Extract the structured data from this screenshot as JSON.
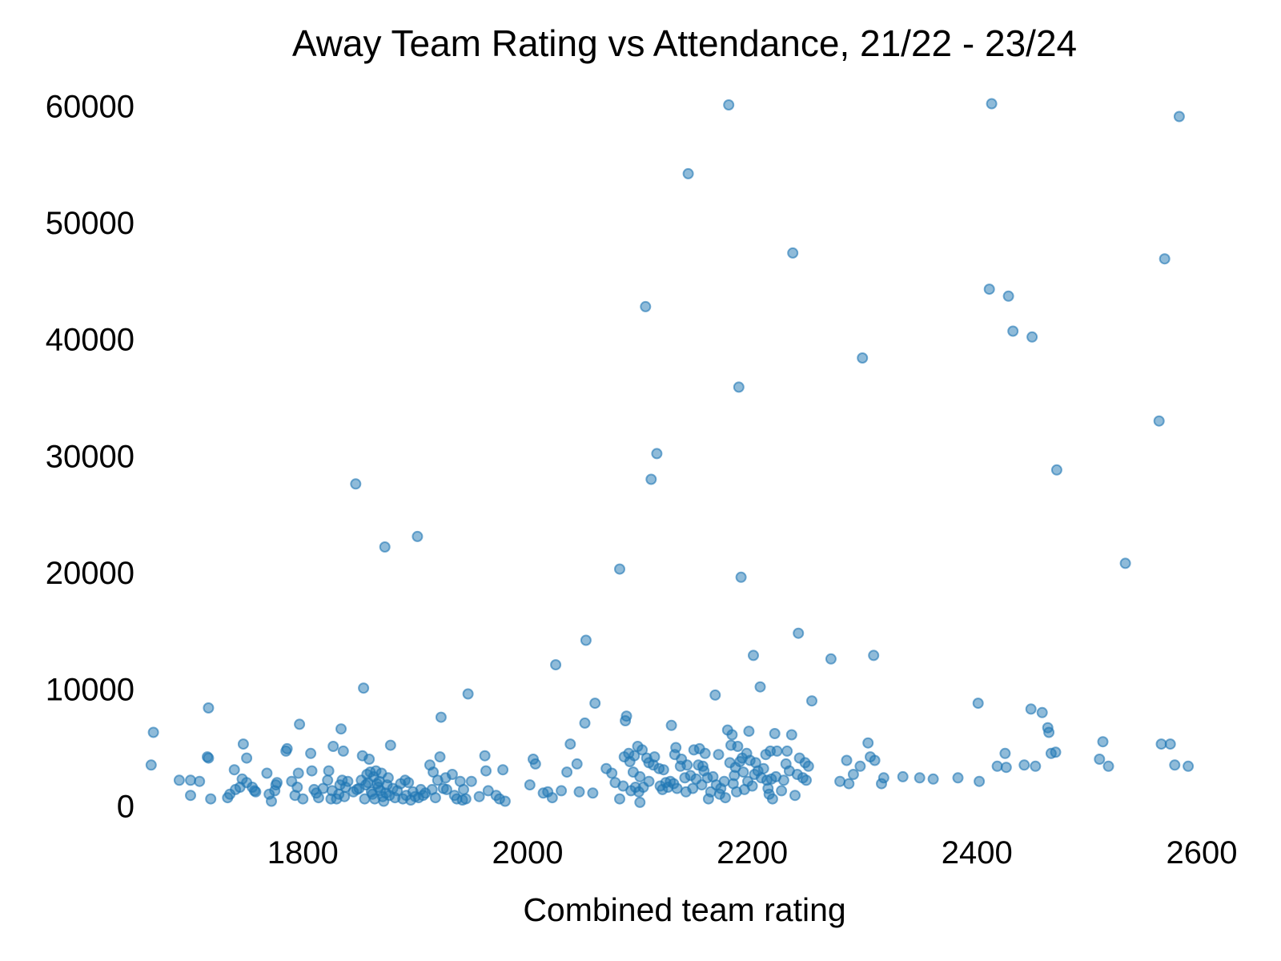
{
  "chart_data": {
    "type": "scatter",
    "title": "Away Team Rating vs Attendance, 21/22 - 23/24",
    "xlabel": "Combined team rating",
    "ylabel": "",
    "xlim": [
      1653,
      2605
    ],
    "ylim": [
      -3000,
      62500
    ],
    "x_ticks": [
      1800,
      2000,
      2200,
      2400,
      2600
    ],
    "y_ticks": [
      0,
      10000,
      20000,
      30000,
      40000,
      50000,
      60000
    ],
    "grid": false,
    "legend": "none",
    "point_color": "#1f77b4",
    "point_alpha": 0.5,
    "points": [
      [
        1665,
        3500
      ],
      [
        1667,
        6300
      ],
      [
        1690,
        2200
      ],
      [
        1700,
        900
      ],
      [
        1700,
        2200
      ],
      [
        1708,
        2100
      ],
      [
        1715,
        4200
      ],
      [
        1716,
        8400
      ],
      [
        1716,
        4100
      ],
      [
        1718,
        600
      ],
      [
        1733,
        700
      ],
      [
        1735,
        1000
      ],
      [
        1739,
        3100
      ],
      [
        1740,
        1400
      ],
      [
        1744,
        1600
      ],
      [
        1746,
        2300
      ],
      [
        1747,
        5300
      ],
      [
        1750,
        4100
      ],
      [
        1750,
        2000
      ],
      [
        1755,
        1600
      ],
      [
        1757,
        1300
      ],
      [
        1758,
        1200
      ],
      [
        1768,
        2800
      ],
      [
        1770,
        1000
      ],
      [
        1772,
        400
      ],
      [
        1775,
        1300
      ],
      [
        1776,
        1800
      ],
      [
        1777,
        2000
      ],
      [
        1785,
        4700
      ],
      [
        1786,
        4900
      ],
      [
        1790,
        2100
      ],
      [
        1793,
        900
      ],
      [
        1795,
        1600
      ],
      [
        1796,
        2800
      ],
      [
        1797,
        7000
      ],
      [
        1800,
        600
      ],
      [
        1807,
        4500
      ],
      [
        1808,
        3000
      ],
      [
        1810,
        1400
      ],
      [
        1812,
        1100
      ],
      [
        1814,
        700
      ],
      [
        1818,
        1500
      ],
      [
        1822,
        2200
      ],
      [
        1823,
        3000
      ],
      [
        1825,
        600
      ],
      [
        1826,
        1300
      ],
      [
        1827,
        5100
      ],
      [
        1830,
        600
      ],
      [
        1832,
        1000
      ],
      [
        1833,
        1800
      ],
      [
        1834,
        6600
      ],
      [
        1835,
        2200
      ],
      [
        1836,
        4700
      ],
      [
        1837,
        800
      ],
      [
        1838,
        1600
      ],
      [
        1840,
        2100
      ],
      [
        1845,
        1200
      ],
      [
        1847,
        27600
      ],
      [
        1848,
        1400
      ],
      [
        1850,
        1500
      ],
      [
        1852,
        2200
      ],
      [
        1853,
        4300
      ],
      [
        1854,
        10100
      ],
      [
        1855,
        600
      ],
      [
        1856,
        1800
      ],
      [
        1857,
        2700
      ],
      [
        1858,
        2000
      ],
      [
        1859,
        4000
      ],
      [
        1860,
        2900
      ],
      [
        1861,
        1200
      ],
      [
        1862,
        1000
      ],
      [
        1863,
        2500
      ],
      [
        1864,
        600
      ],
      [
        1865,
        3000
      ],
      [
        1866,
        1900
      ],
      [
        1867,
        1600
      ],
      [
        1868,
        2100
      ],
      [
        1869,
        1300
      ],
      [
        1870,
        2800
      ],
      [
        1871,
        800
      ],
      [
        1872,
        400
      ],
      [
        1873,
        22200
      ],
      [
        1874,
        1100
      ],
      [
        1875,
        1800
      ],
      [
        1876,
        2400
      ],
      [
        1877,
        900
      ],
      [
        1878,
        5200
      ],
      [
        1880,
        1500
      ],
      [
        1882,
        700
      ],
      [
        1884,
        1300
      ],
      [
        1887,
        1900
      ],
      [
        1889,
        600
      ],
      [
        1891,
        2200
      ],
      [
        1892,
        900
      ],
      [
        1894,
        2000
      ],
      [
        1896,
        500
      ],
      [
        1898,
        1200
      ],
      [
        1900,
        800
      ],
      [
        1902,
        23100
      ],
      [
        1903,
        700
      ],
      [
        1905,
        1400
      ],
      [
        1907,
        900
      ],
      [
        1909,
        1100
      ],
      [
        1913,
        3500
      ],
      [
        1915,
        1400
      ],
      [
        1916,
        2900
      ],
      [
        1918,
        700
      ],
      [
        1920,
        2200
      ],
      [
        1922,
        4200
      ],
      [
        1923,
        7600
      ],
      [
        1925,
        1500
      ],
      [
        1927,
        2400
      ],
      [
        1928,
        1400
      ],
      [
        1933,
        2700
      ],
      [
        1935,
        900
      ],
      [
        1937,
        600
      ],
      [
        1940,
        2100
      ],
      [
        1942,
        500
      ],
      [
        1943,
        1400
      ],
      [
        1945,
        600
      ],
      [
        1947,
        9600
      ],
      [
        1950,
        2100
      ],
      [
        1957,
        800
      ],
      [
        1962,
        4300
      ],
      [
        1963,
        3000
      ],
      [
        1965,
        1300
      ],
      [
        1972,
        900
      ],
      [
        1975,
        600
      ],
      [
        1978,
        3100
      ],
      [
        1980,
        400
      ],
      [
        2002,
        1800
      ],
      [
        2005,
        4000
      ],
      [
        2007,
        3600
      ],
      [
        2014,
        1100
      ],
      [
        2018,
        1200
      ],
      [
        2022,
        700
      ],
      [
        2025,
        12100
      ],
      [
        2030,
        1300
      ],
      [
        2035,
        2900
      ],
      [
        2038,
        5300
      ],
      [
        2044,
        3600
      ],
      [
        2046,
        1200
      ],
      [
        2051,
        7100
      ],
      [
        2052,
        14200
      ],
      [
        2058,
        1100
      ],
      [
        2060,
        8800
      ],
      [
        2070,
        3200
      ],
      [
        2075,
        2800
      ],
      [
        2078,
        2000
      ],
      [
        2082,
        20300
      ],
      [
        2082,
        600
      ],
      [
        2085,
        1700
      ],
      [
        2086,
        4200
      ],
      [
        2087,
        7300
      ],
      [
        2088,
        7700
      ],
      [
        2090,
        4500
      ],
      [
        2091,
        3800
      ],
      [
        2092,
        1300
      ],
      [
        2094,
        2900
      ],
      [
        2095,
        4300
      ],
      [
        2096,
        1600
      ],
      [
        2098,
        5100
      ],
      [
        2099,
        1200
      ],
      [
        2100,
        2500
      ],
      [
        2100,
        300
      ],
      [
        2102,
        4800
      ],
      [
        2103,
        1600
      ],
      [
        2105,
        42800
      ],
      [
        2106,
        4100
      ],
      [
        2108,
        3700
      ],
      [
        2108,
        2100
      ],
      [
        2110,
        28000
      ],
      [
        2112,
        3500
      ],
      [
        2113,
        4200
      ],
      [
        2115,
        30200
      ],
      [
        2117,
        3200
      ],
      [
        2118,
        1700
      ],
      [
        2120,
        1400
      ],
      [
        2121,
        3100
      ],
      [
        2123,
        2000
      ],
      [
        2125,
        1600
      ],
      [
        2127,
        2100
      ],
      [
        2128,
        6900
      ],
      [
        2130,
        1900
      ],
      [
        2131,
        4400
      ],
      [
        2132,
        5000
      ],
      [
        2133,
        1500
      ],
      [
        2136,
        3400
      ],
      [
        2137,
        4000
      ],
      [
        2140,
        2400
      ],
      [
        2141,
        1200
      ],
      [
        2142,
        3500
      ],
      [
        2143,
        54200
      ],
      [
        2145,
        2600
      ],
      [
        2147,
        1500
      ],
      [
        2148,
        4800
      ],
      [
        2150,
        2300
      ],
      [
        2152,
        3500
      ],
      [
        2153,
        4900
      ],
      [
        2155,
        1800
      ],
      [
        2156,
        3400
      ],
      [
        2157,
        3000
      ],
      [
        2158,
        4500
      ],
      [
        2160,
        2400
      ],
      [
        2161,
        600
      ],
      [
        2163,
        1200
      ],
      [
        2165,
        2500
      ],
      [
        2167,
        9500
      ],
      [
        2168,
        1800
      ],
      [
        2170,
        4400
      ],
      [
        2171,
        1000
      ],
      [
        2172,
        1500
      ],
      [
        2175,
        2100
      ],
      [
        2176,
        700
      ],
      [
        2178,
        6500
      ],
      [
        2179,
        60100
      ],
      [
        2180,
        3700
      ],
      [
        2181,
        5200
      ],
      [
        2182,
        6100
      ],
      [
        2183,
        1900
      ],
      [
        2184,
        2600
      ],
      [
        2185,
        3300
      ],
      [
        2186,
        1200
      ],
      [
        2187,
        5100
      ],
      [
        2188,
        35900
      ],
      [
        2189,
        3800
      ],
      [
        2190,
        19600
      ],
      [
        2191,
        4100
      ],
      [
        2192,
        2900
      ],
      [
        2193,
        1400
      ],
      [
        2195,
        4500
      ],
      [
        2196,
        2100
      ],
      [
        2197,
        6400
      ],
      [
        2198,
        3900
      ],
      [
        2200,
        1700
      ],
      [
        2201,
        12900
      ],
      [
        2202,
        2700
      ],
      [
        2203,
        3700
      ],
      [
        2205,
        3000
      ],
      [
        2207,
        10200
      ],
      [
        2208,
        2400
      ],
      [
        2210,
        3200
      ],
      [
        2212,
        4400
      ],
      [
        2213,
        2200
      ],
      [
        2214,
        1500
      ],
      [
        2215,
        1000
      ],
      [
        2216,
        4700
      ],
      [
        2217,
        2300
      ],
      [
        2218,
        600
      ],
      [
        2220,
        6200
      ],
      [
        2221,
        2500
      ],
      [
        2222,
        4700
      ],
      [
        2226,
        1300
      ],
      [
        2228,
        2200
      ],
      [
        2230,
        3600
      ],
      [
        2231,
        4700
      ],
      [
        2233,
        3000
      ],
      [
        2235,
        6100
      ],
      [
        2236,
        47400
      ],
      [
        2238,
        900
      ],
      [
        2240,
        2700
      ],
      [
        2241,
        14800
      ],
      [
        2242,
        4100
      ],
      [
        2245,
        2400
      ],
      [
        2247,
        3700
      ],
      [
        2248,
        2200
      ],
      [
        2250,
        3400
      ],
      [
        2253,
        9000
      ],
      [
        2270,
        12600
      ],
      [
        2278,
        2100
      ],
      [
        2284,
        3900
      ],
      [
        2286,
        1900
      ],
      [
        2290,
        2700
      ],
      [
        2296,
        3400
      ],
      [
        2298,
        38400
      ],
      [
        2303,
        5400
      ],
      [
        2305,
        4200
      ],
      [
        2308,
        12900
      ],
      [
        2309,
        3900
      ],
      [
        2315,
        1900
      ],
      [
        2317,
        2400
      ],
      [
        2334,
        2500
      ],
      [
        2349,
        2400
      ],
      [
        2361,
        2300
      ],
      [
        2383,
        2400
      ],
      [
        2401,
        8800
      ],
      [
        2402,
        2100
      ],
      [
        2411,
        44300
      ],
      [
        2413,
        60200
      ],
      [
        2418,
        3400
      ],
      [
        2425,
        4500
      ],
      [
        2426,
        3300
      ],
      [
        2428,
        43700
      ],
      [
        2432,
        40700
      ],
      [
        2442,
        3500
      ],
      [
        2448,
        8300
      ],
      [
        2449,
        40200
      ],
      [
        2452,
        3400
      ],
      [
        2458,
        8000
      ],
      [
        2463,
        6700
      ],
      [
        2464,
        6300
      ],
      [
        2466,
        4500
      ],
      [
        2470,
        4600
      ],
      [
        2471,
        28800
      ],
      [
        2509,
        4000
      ],
      [
        2512,
        5500
      ],
      [
        2517,
        3400
      ],
      [
        2532,
        20800
      ],
      [
        2562,
        33000
      ],
      [
        2564,
        5300
      ],
      [
        2567,
        46900
      ],
      [
        2572,
        5300
      ],
      [
        2576,
        3500
      ],
      [
        2580,
        59100
      ],
      [
        2588,
        3400
      ]
    ]
  }
}
